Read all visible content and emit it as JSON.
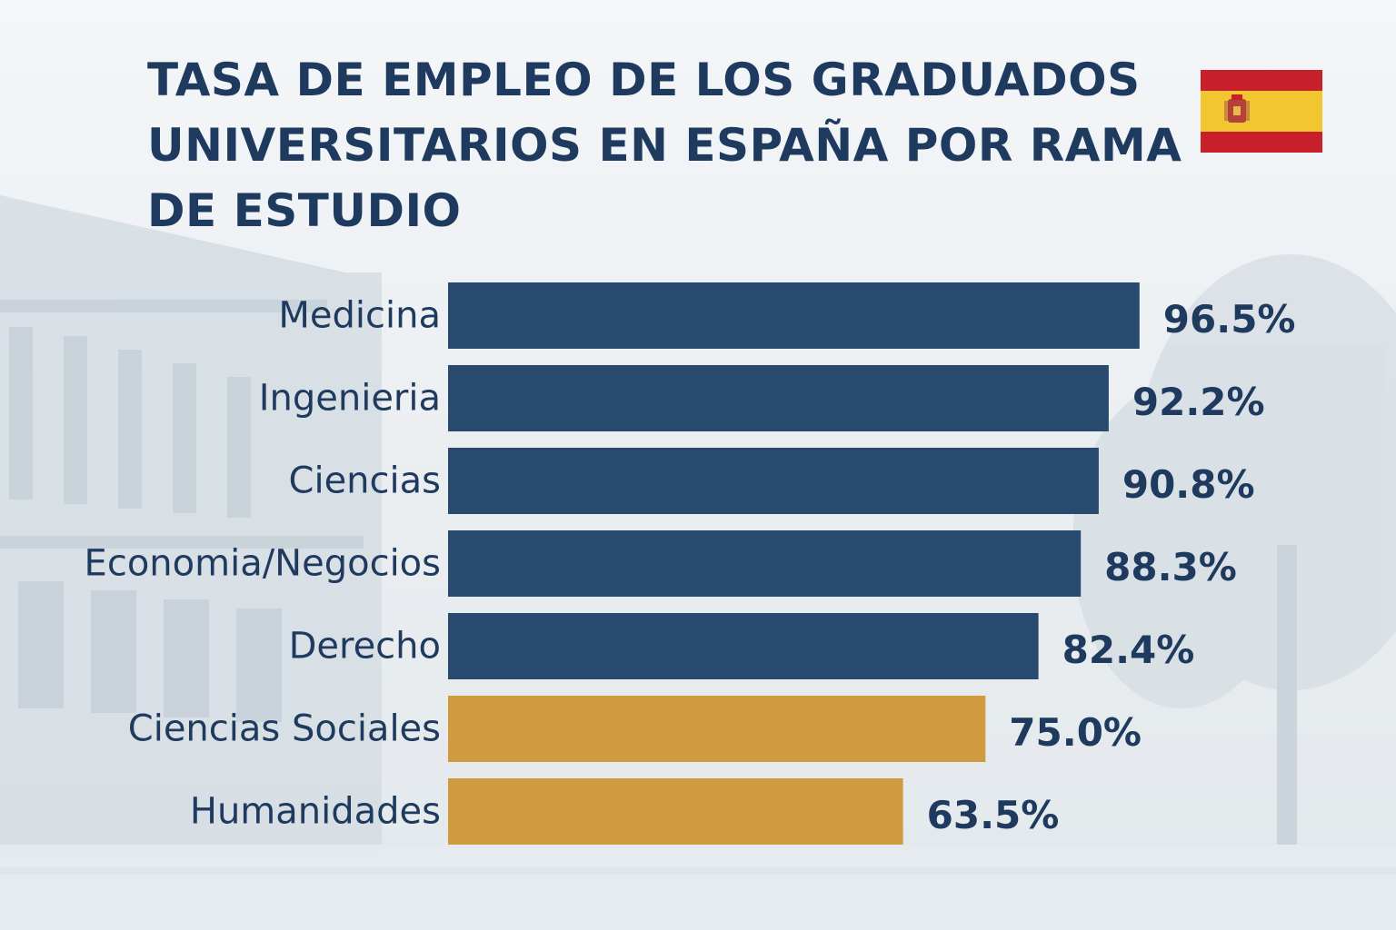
{
  "chart_data": {
    "type": "bar",
    "orientation": "horizontal",
    "title": "TASA DE EMPLEO DE LOS GRADUADOS UNIVERSITARIOS EN ESPAÑA POR RAMA DE ESTUDIO",
    "categories": [
      "Medicina",
      "Ingenieria",
      "Ciencias",
      "Economia/Negocios",
      "Derecho",
      "Ciencias Sociales",
      "Humanidades"
    ],
    "values": [
      96.5,
      92.2,
      90.8,
      88.3,
      82.4,
      75.0,
      63.5
    ],
    "value_labels": [
      "96.5%",
      "92.2%",
      "90.8%",
      "88.3%",
      "82.4%",
      "75.0%",
      "63.5%"
    ],
    "unit": "%",
    "xlim": [
      0,
      100
    ],
    "grid": false,
    "legend": "none",
    "colors": {
      "primary": "#284a6e",
      "highlight": "#d09a3e",
      "text": "#1f3a5f"
    },
    "highlighted_categories": [
      "Ciencias Sociales",
      "Humanidades"
    ]
  },
  "flag": {
    "icon": "spain-flag-icon",
    "colors": [
      "#c8202a",
      "#f2c631",
      "#c8202a"
    ]
  }
}
